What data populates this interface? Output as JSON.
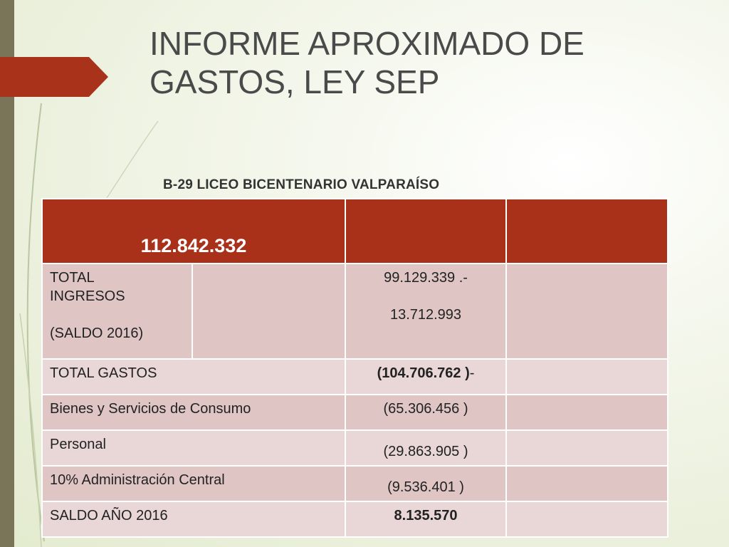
{
  "slide": {
    "title": "INFORME APROXIMADO DE GASTOS, LEY SEP",
    "subtitle": "B-29 LICEO BICENTENARIO VALPARAÍSO"
  },
  "table": {
    "header_value": "112.842.332",
    "income": {
      "label_line1": "TOTAL",
      "label_line2": "INGRESOS",
      "label_line3": "(SALDO  2016)",
      "value_line1": "99.129.339 .-",
      "value_line2": "13.712.993"
    },
    "rows": [
      {
        "label": "TOTAL GASTOS",
        "value": "(104.706.762 )",
        "suffix": "-"
      },
      {
        "label": "Bienes y Servicios de Consumo",
        "value": "(65.306.456 )"
      },
      {
        "label": "Personal",
        "value": "(29.863.905 )"
      },
      {
        "label": "10% Administración Central",
        "value": "(9.536.401 )"
      },
      {
        "label": "SALDO AÑO 2016",
        "value": "8.135.570"
      }
    ]
  },
  "colors": {
    "accent_red": "#a9311a",
    "sidebar": "#7a7458",
    "row_light": "#e9d6d6",
    "row_dark": "#e0c5c5"
  }
}
